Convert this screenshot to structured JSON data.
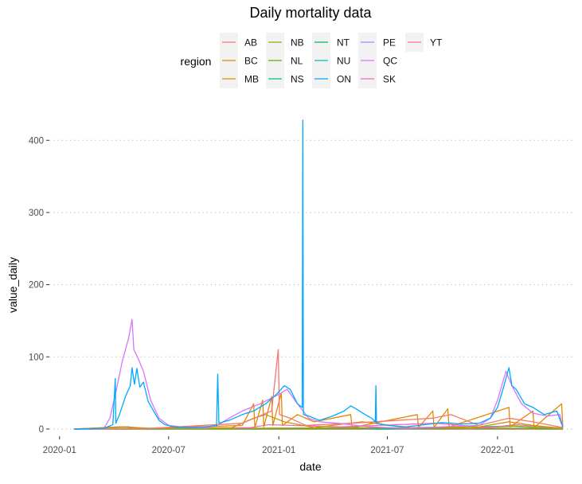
{
  "chart_data": {
    "type": "line",
    "title": "Daily mortality data",
    "xlabel": "date",
    "ylabel": "value_daily",
    "legend": {
      "title": "region",
      "position": "top",
      "columns": [
        [
          "AB",
          "BC",
          "MB"
        ],
        [
          "NB",
          "NL",
          "NS"
        ],
        [
          "NT",
          "NU",
          "ON"
        ],
        [
          "PE",
          "QC",
          "SK"
        ],
        [
          "YT"
        ]
      ]
    },
    "x_axis": {
      "type": "date",
      "range": [
        "2019-12-15",
        "2022-05-10"
      ],
      "ticks": [
        {
          "value": "2020-01-01",
          "label": "2020-01"
        },
        {
          "value": "2020-07-01",
          "label": "2020-07"
        },
        {
          "value": "2021-01-01",
          "label": "2021-01"
        },
        {
          "value": "2021-07-01",
          "label": "2021-07"
        },
        {
          "value": "2022-01-01",
          "label": "2022-01"
        }
      ]
    },
    "y_axis": {
      "range": [
        -10,
        440
      ],
      "ticks": [
        0,
        100,
        200,
        300,
        400
      ],
      "grid": "horizontal-dotted"
    },
    "series": [
      {
        "name": "ON",
        "color": "#00A9FF",
        "points": [
          [
            "2020-01-25",
            0
          ],
          [
            "2020-03-15",
            1
          ],
          [
            "2020-03-30",
            6
          ],
          [
            "2020-04-03",
            70
          ],
          [
            "2020-04-04",
            8
          ],
          [
            "2020-04-10",
            20
          ],
          [
            "2020-04-20",
            45
          ],
          [
            "2020-04-28",
            60
          ],
          [
            "2020-05-01",
            85
          ],
          [
            "2020-05-05",
            62
          ],
          [
            "2020-05-09",
            84
          ],
          [
            "2020-05-14",
            58
          ],
          [
            "2020-05-20",
            65
          ],
          [
            "2020-05-28",
            38
          ],
          [
            "2020-06-06",
            25
          ],
          [
            "2020-06-15",
            12
          ],
          [
            "2020-06-25",
            6
          ],
          [
            "2020-07-10",
            3
          ],
          [
            "2020-08-01",
            2
          ],
          [
            "2020-09-01",
            3
          ],
          [
            "2020-09-19",
            5
          ],
          [
            "2020-09-21",
            76
          ],
          [
            "2020-09-23",
            8
          ],
          [
            "2020-10-10",
            12
          ],
          [
            "2020-11-01",
            20
          ],
          [
            "2020-11-20",
            25
          ],
          [
            "2020-12-10",
            35
          ],
          [
            "2020-12-28",
            48
          ],
          [
            "2021-01-10",
            60
          ],
          [
            "2021-01-20",
            55
          ],
          [
            "2021-02-01",
            35
          ],
          [
            "2021-02-09",
            30
          ],
          [
            "2021-02-10",
            428
          ],
          [
            "2021-02-11",
            20
          ],
          [
            "2021-02-20",
            18
          ],
          [
            "2021-03-10",
            12
          ],
          [
            "2021-04-01",
            18
          ],
          [
            "2021-04-20",
            25
          ],
          [
            "2021-05-01",
            32
          ],
          [
            "2021-05-10",
            28
          ],
          [
            "2021-05-25",
            20
          ],
          [
            "2021-06-05",
            15
          ],
          [
            "2021-06-11",
            10
          ],
          [
            "2021-06-12",
            60
          ],
          [
            "2021-06-13",
            8
          ],
          [
            "2021-07-01",
            5
          ],
          [
            "2021-08-01",
            3
          ],
          [
            "2021-09-01",
            6
          ],
          [
            "2021-10-01",
            9
          ],
          [
            "2021-11-01",
            7
          ],
          [
            "2021-12-01",
            8
          ],
          [
            "2021-12-20",
            15
          ],
          [
            "2022-01-01",
            30
          ],
          [
            "2022-01-10",
            55
          ],
          [
            "2022-01-20",
            85
          ],
          [
            "2022-01-25",
            60
          ],
          [
            "2022-02-01",
            55
          ],
          [
            "2022-02-15",
            35
          ],
          [
            "2022-03-01",
            30
          ],
          [
            "2022-03-20",
            20
          ],
          [
            "2022-04-10",
            25
          ],
          [
            "2022-04-20",
            2
          ]
        ]
      },
      {
        "name": "QC",
        "color": "#D575FE",
        "points": [
          [
            "2020-01-25",
            0
          ],
          [
            "2020-03-15",
            1
          ],
          [
            "2020-03-25",
            15
          ],
          [
            "2020-04-05",
            55
          ],
          [
            "2020-04-15",
            95
          ],
          [
            "2020-04-25",
            125
          ],
          [
            "2020-05-01",
            152
          ],
          [
            "2020-05-04",
            110
          ],
          [
            "2020-05-10",
            100
          ],
          [
            "2020-05-20",
            80
          ],
          [
            "2020-06-01",
            40
          ],
          [
            "2020-06-15",
            15
          ],
          [
            "2020-07-01",
            5
          ],
          [
            "2020-08-01",
            2
          ],
          [
            "2020-09-01",
            2
          ],
          [
            "2020-09-20",
            5
          ],
          [
            "2020-10-10",
            15
          ],
          [
            "2020-11-01",
            25
          ],
          [
            "2020-12-01",
            35
          ],
          [
            "2021-01-01",
            48
          ],
          [
            "2021-01-15",
            55
          ],
          [
            "2021-02-01",
            35
          ],
          [
            "2021-02-20",
            15
          ],
          [
            "2021-03-10",
            10
          ],
          [
            "2021-04-10",
            8
          ],
          [
            "2021-06-01",
            3
          ],
          [
            "2021-08-01",
            1
          ],
          [
            "2021-10-01",
            3
          ],
          [
            "2021-12-01",
            5
          ],
          [
            "2021-12-20",
            15
          ],
          [
            "2022-01-01",
            40
          ],
          [
            "2022-01-15",
            80
          ],
          [
            "2022-01-25",
            60
          ],
          [
            "2022-02-10",
            35
          ],
          [
            "2022-03-01",
            22
          ],
          [
            "2022-03-25",
            18
          ],
          [
            "2022-04-15",
            20
          ],
          [
            "2022-04-20",
            2
          ]
        ]
      },
      {
        "name": "AB",
        "color": "#F8766D",
        "points": [
          [
            "2020-01-25",
            0
          ],
          [
            "2020-06-01",
            1
          ],
          [
            "2020-11-01",
            8
          ],
          [
            "2020-12-20",
            25
          ],
          [
            "2020-12-31",
            110
          ],
          [
            "2021-01-02",
            20
          ],
          [
            "2021-01-20",
            15
          ],
          [
            "2021-02-15",
            5
          ],
          [
            "2021-05-01",
            8
          ],
          [
            "2021-09-15",
            15
          ],
          [
            "2021-10-15",
            20
          ],
          [
            "2021-12-01",
            5
          ],
          [
            "2022-01-20",
            15
          ],
          [
            "2022-03-01",
            10
          ],
          [
            "2022-04-20",
            2
          ]
        ]
      },
      {
        "name": "BC",
        "color": "#E38900",
        "points": [
          [
            "2020-01-25",
            0
          ],
          [
            "2020-04-10",
            3
          ],
          [
            "2020-06-01",
            1
          ],
          [
            "2020-11-01",
            5
          ],
          [
            "2020-11-20",
            35
          ],
          [
            "2020-11-22",
            2
          ],
          [
            "2020-12-05",
            40
          ],
          [
            "2020-12-07",
            3
          ],
          [
            "2020-12-20",
            45
          ],
          [
            "2020-12-22",
            5
          ],
          [
            "2021-01-05",
            50
          ],
          [
            "2021-01-07",
            5
          ],
          [
            "2021-02-01",
            20
          ],
          [
            "2021-03-01",
            10
          ],
          [
            "2021-05-01",
            20
          ],
          [
            "2021-05-03",
            2
          ],
          [
            "2021-08-20",
            20
          ],
          [
            "2021-08-22",
            2
          ],
          [
            "2021-09-15",
            25
          ],
          [
            "2021-09-17",
            2
          ],
          [
            "2021-10-10",
            28
          ],
          [
            "2021-10-12",
            3
          ],
          [
            "2022-01-20",
            30
          ],
          [
            "2022-01-22",
            3
          ],
          [
            "2022-03-01",
            25
          ],
          [
            "2022-03-03",
            2
          ],
          [
            "2022-04-18",
            35
          ],
          [
            "2022-04-20",
            2
          ]
        ]
      },
      {
        "name": "MB",
        "color": "#C49A00",
        "points": [
          [
            "2020-01-25",
            0
          ],
          [
            "2020-10-15",
            2
          ],
          [
            "2020-11-20",
            15
          ],
          [
            "2020-12-10",
            20
          ],
          [
            "2021-01-10",
            10
          ],
          [
            "2021-03-01",
            2
          ],
          [
            "2021-05-20",
            10
          ],
          [
            "2021-06-10",
            8
          ],
          [
            "2021-08-01",
            2
          ],
          [
            "2021-12-01",
            3
          ],
          [
            "2022-01-20",
            10
          ],
          [
            "2022-03-01",
            5
          ],
          [
            "2022-04-20",
            1
          ]
        ]
      },
      {
        "name": "SK",
        "color": "#FF61C9",
        "points": [
          [
            "2020-01-25",
            0
          ],
          [
            "2020-11-15",
            2
          ],
          [
            "2020-12-15",
            6
          ],
          [
            "2021-01-20",
            5
          ],
          [
            "2021-04-15",
            3
          ],
          [
            "2021-09-20",
            8
          ],
          [
            "2021-10-20",
            6
          ],
          [
            "2021-12-15",
            2
          ],
          [
            "2022-02-01",
            6
          ],
          [
            "2022-04-20",
            1
          ]
        ]
      },
      {
        "name": "NS",
        "color": "#00C08B",
        "points": [
          [
            "2020-01-25",
            0
          ],
          [
            "2020-04-25",
            3
          ],
          [
            "2020-06-01",
            0
          ],
          [
            "2021-05-15",
            2
          ],
          [
            "2021-06-15",
            0
          ],
          [
            "2022-01-25",
            4
          ],
          [
            "2022-04-20",
            0
          ]
        ]
      },
      {
        "name": "NB",
        "color": "#99A800",
        "points": [
          [
            "2020-01-25",
            0
          ],
          [
            "2021-10-01",
            2
          ],
          [
            "2021-11-15",
            1
          ],
          [
            "2022-02-01",
            4
          ],
          [
            "2022-04-20",
            0
          ]
        ]
      },
      {
        "name": "NL",
        "color": "#53B400",
        "points": [
          [
            "2020-01-25",
            0
          ],
          [
            "2022-02-10",
            1
          ],
          [
            "2022-04-20",
            0
          ]
        ]
      },
      {
        "name": "NT",
        "color": "#00BC56",
        "points": [
          [
            "2020-01-25",
            0
          ],
          [
            "2022-04-20",
            0
          ]
        ]
      },
      {
        "name": "NU",
        "color": "#00BFC4",
        "points": [
          [
            "2020-01-25",
            0
          ],
          [
            "2022-04-20",
            0
          ]
        ]
      },
      {
        "name": "PE",
        "color": "#8C94FF",
        "points": [
          [
            "2020-01-25",
            0
          ],
          [
            "2022-04-20",
            0
          ]
        ]
      },
      {
        "name": "YT",
        "color": "#FF6C91",
        "points": [
          [
            "2020-01-25",
            0
          ],
          [
            "2022-04-20",
            0
          ]
        ]
      }
    ]
  }
}
